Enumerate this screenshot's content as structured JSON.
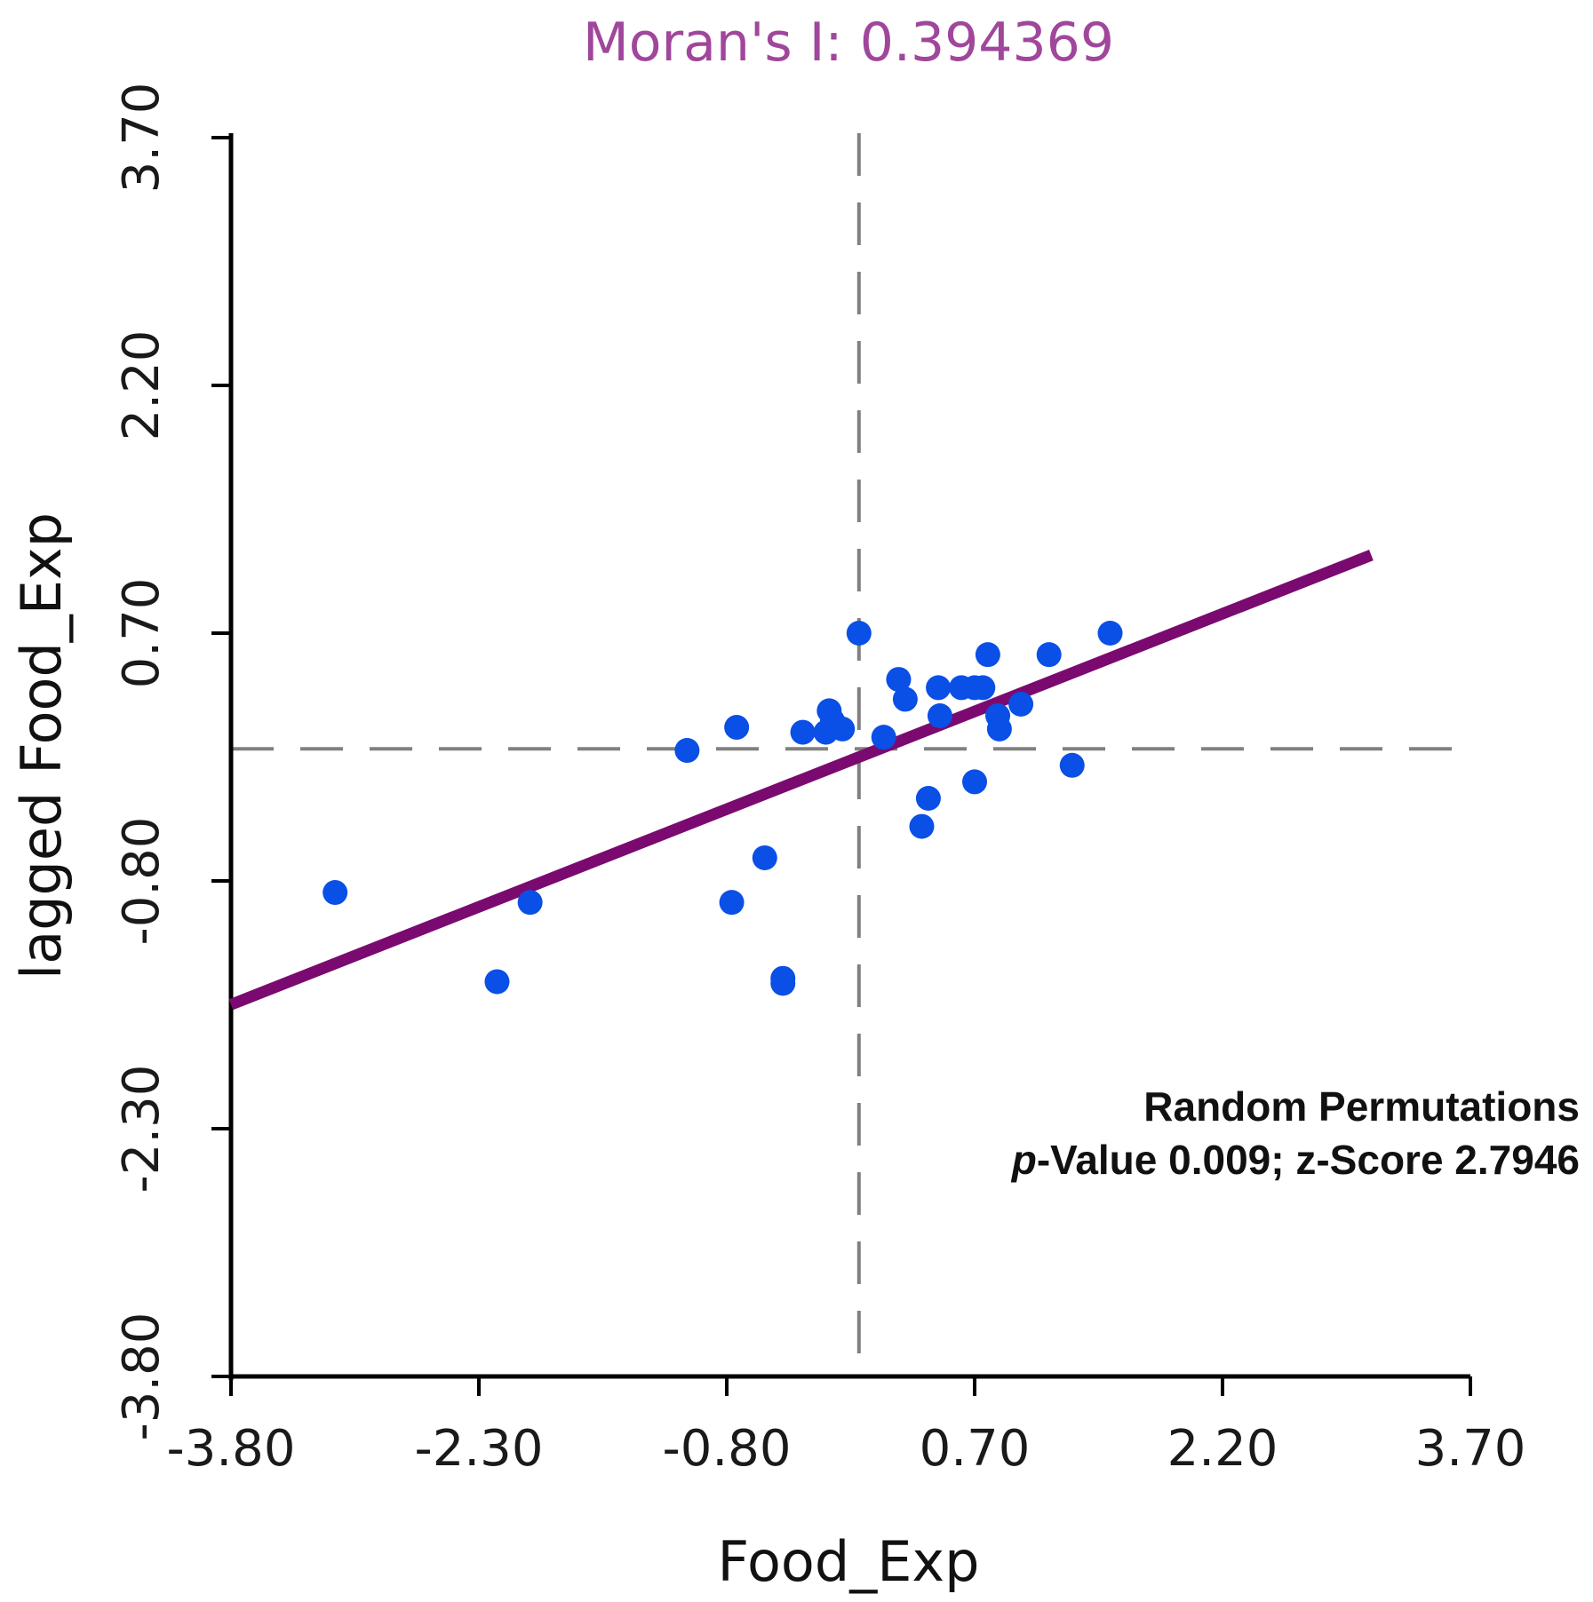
{
  "chart_data": {
    "type": "scatter",
    "title": "Moran's I: 0.394369",
    "xlabel": "Food_Exp",
    "ylabel": "lagged Food_Exp",
    "xlim": [
      -3.8,
      3.7
    ],
    "ylim": [
      -3.8,
      3.7
    ],
    "xticks": [
      "-3.80",
      "-2.30",
      "-0.80",
      "0.70",
      "2.20",
      "3.70"
    ],
    "yticks": [
      "-3.80",
      "-2.30",
      "-0.80",
      "0.70",
      "2.20",
      "3.70"
    ],
    "grid": false,
    "reference_lines": {
      "x": 0,
      "y": 0,
      "style": "dashed"
    },
    "points": [
      {
        "x": -3.17,
        "y": -0.87
      },
      {
        "x": -2.19,
        "y": -1.41
      },
      {
        "x": -1.99,
        "y": -0.93
      },
      {
        "x": -1.04,
        "y": -0.01
      },
      {
        "x": -0.77,
        "y": -0.93
      },
      {
        "x": -0.74,
        "y": 0.13
      },
      {
        "x": -0.57,
        "y": -0.66
      },
      {
        "x": -0.46,
        "y": -1.39
      },
      {
        "x": -0.46,
        "y": -1.42
      },
      {
        "x": -0.34,
        "y": 0.1
      },
      {
        "x": -0.2,
        "y": 0.1
      },
      {
        "x": -0.18,
        "y": 0.23
      },
      {
        "x": -0.16,
        "y": 0.17
      },
      {
        "x": -0.1,
        "y": 0.12
      },
      {
        "x": 0.0,
        "y": 0.7
      },
      {
        "x": 0.15,
        "y": 0.07
      },
      {
        "x": 0.24,
        "y": 0.42
      },
      {
        "x": 0.28,
        "y": 0.3
      },
      {
        "x": 0.38,
        "y": -0.47
      },
      {
        "x": 0.42,
        "y": -0.3
      },
      {
        "x": 0.48,
        "y": 0.37
      },
      {
        "x": 0.49,
        "y": 0.2
      },
      {
        "x": 0.62,
        "y": 0.37
      },
      {
        "x": 0.7,
        "y": 0.37
      },
      {
        "x": 0.7,
        "y": -0.2
      },
      {
        "x": 0.75,
        "y": 0.37
      },
      {
        "x": 0.78,
        "y": 0.57
      },
      {
        "x": 0.84,
        "y": 0.2
      },
      {
        "x": 0.85,
        "y": 0.12
      },
      {
        "x": 0.98,
        "y": 0.27
      },
      {
        "x": 1.15,
        "y": 0.57
      },
      {
        "x": 1.29,
        "y": -0.1
      },
      {
        "x": 1.52,
        "y": 0.7
      }
    ],
    "regression_line": {
      "slope": 0.394369,
      "intercept": -0.05,
      "color": "#7a0a70"
    },
    "point_color": "#0a4fe6",
    "annotations": {
      "line1": "Random Permutations",
      "p_italic": "p",
      "line2_rest": "-Value 0.009; z-Score 2.7946"
    }
  }
}
